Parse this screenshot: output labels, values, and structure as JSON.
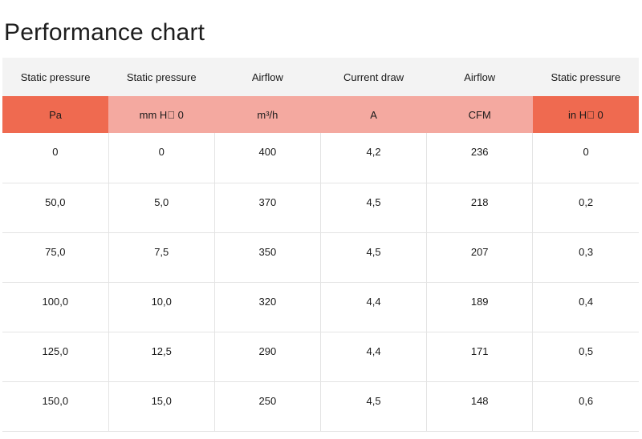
{
  "title": "Performance chart",
  "columns": [
    {
      "header": "Static pressure",
      "unit": "Pa",
      "accent": true
    },
    {
      "header": "Static pressure",
      "unit": "mm H\u0000 0",
      "accent": false
    },
    {
      "header": "Airflow",
      "unit": "m³/h",
      "accent": false
    },
    {
      "header": "Current draw",
      "unit": "A",
      "accent": false
    },
    {
      "header": "Airflow",
      "unit": "CFM",
      "accent": false
    },
    {
      "header": "Static pressure",
      "unit": "in H\u0000 0",
      "accent": true
    }
  ],
  "rows": [
    [
      "0",
      "0",
      "400",
      "4,2",
      "236",
      "0"
    ],
    [
      "50,0",
      "5,0",
      "370",
      "4,5",
      "218",
      "0,2"
    ],
    [
      "75,0",
      "7,5",
      "350",
      "4,5",
      "207",
      "0,3"
    ],
    [
      "100,0",
      "10,0",
      "320",
      "4,4",
      "189",
      "0,4"
    ],
    [
      "125,0",
      "12,5",
      "290",
      "4,4",
      "171",
      "0,5"
    ],
    [
      "150,0",
      "15,0",
      "250",
      "4,5",
      "148",
      "0,6"
    ]
  ],
  "colors": {
    "header_bg": "#f3f3f3",
    "unit_accent": "#ef6a50",
    "unit_light": "#f4a9a0",
    "grid": "#e4e4e4"
  }
}
